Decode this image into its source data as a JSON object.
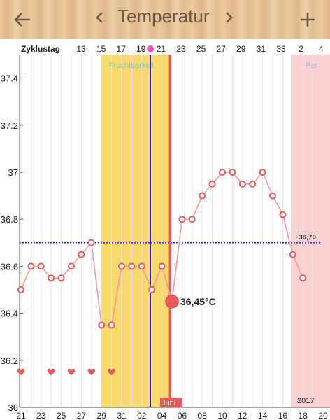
{
  "header": {
    "back_icon": "arrow-left-icon",
    "prev_icon": "chevron-left-icon",
    "title": "Temperatur",
    "next_icon": "chevron-right-icon",
    "add_icon": "plus-icon"
  },
  "colors": {
    "fertile": "#f8d96c",
    "period": "#fbd0d0",
    "line": "#f49b9b",
    "marker": "#e65a5a",
    "coverline": "#2d2de0",
    "ovulation": "#2b2b9e"
  },
  "cycle_row_label": "Zyklustag",
  "cycle_days": [
    "13",
    "15",
    "17",
    "19",
    "21",
    "23",
    "25",
    "27",
    "29",
    "31",
    "33",
    "2",
    "4"
  ],
  "fertile_label": "Fruchtbarkeit",
  "period_label": "Per",
  "coverline_label": "36,70",
  "selected_label": "36,45°C",
  "month_label": "Juni",
  "year_label": "2017",
  "chart_data": {
    "type": "line",
    "ylim": [
      36.0,
      37.5
    ],
    "y_ticks": [
      "37.4",
      "37.2",
      "37",
      "36.8",
      "36.6",
      "36.4",
      "36.2",
      "36"
    ],
    "x_ticks": [
      "21",
      "23",
      "25",
      "27",
      "29",
      "31",
      "02",
      "04",
      "06",
      "08",
      "10",
      "12",
      "14",
      "16",
      "18",
      "20"
    ],
    "series": [
      {
        "values": [
          36.5,
          36.6,
          36.6,
          36.55,
          36.55,
          36.6,
          36.65,
          36.7,
          36.35,
          36.35,
          36.6,
          36.6,
          36.6,
          36.5,
          36.6,
          36.45,
          36.8,
          36.8,
          36.9,
          36.95,
          37.0,
          37.0,
          36.95,
          36.95,
          37.0,
          36.9,
          36.82,
          36.65,
          36.55
        ]
      }
    ],
    "coverline": 36.7,
    "selected": 36.45,
    "heart_days": [
      0,
      3,
      5,
      7,
      9
    ]
  }
}
